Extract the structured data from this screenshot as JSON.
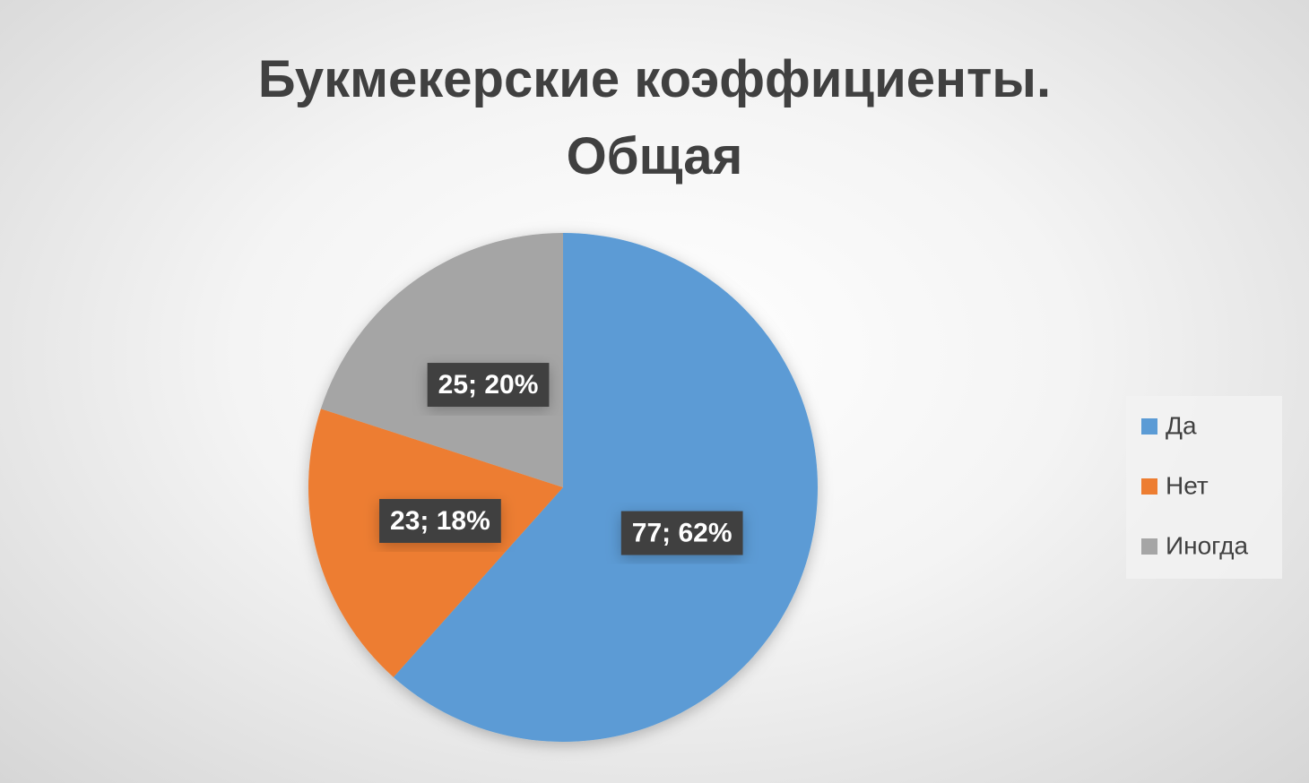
{
  "chart_data": {
    "type": "pie",
    "title": "Букмекерские коэффициенты. Общая",
    "categories": [
      "Да",
      "Нет",
      "Иногда"
    ],
    "values": [
      77,
      23,
      25
    ],
    "value_labels": [
      "77; 62%",
      "23; 18%",
      "25; 20%"
    ],
    "colors": [
      "#5b9bd5",
      "#ed7d31",
      "#a5a5a5"
    ],
    "legend": "right"
  }
}
